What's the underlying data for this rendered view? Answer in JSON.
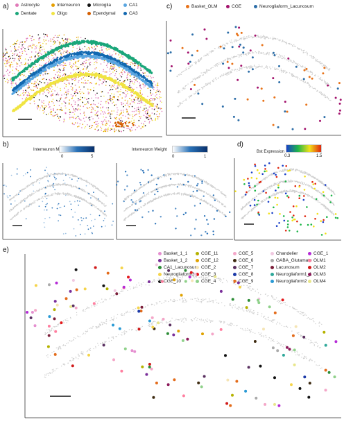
{
  "panels": {
    "a": {
      "label": "a)",
      "legend": [
        {
          "name": "Astrocyte",
          "color": "#e07ab8"
        },
        {
          "name": "Interneuron",
          "color": "#e69f00"
        },
        {
          "name": "Microglia",
          "color": "#111111"
        },
        {
          "name": "CA1",
          "color": "#5aa6e0"
        },
        {
          "name": "Dentate",
          "color": "#1aa67a"
        },
        {
          "name": "Oligo",
          "color": "#f0e442"
        },
        {
          "name": "Ependymal",
          "color": "#d55e00"
        },
        {
          "name": "CA3",
          "color": "#1268b0"
        }
      ]
    },
    "b": {
      "label": "b)",
      "left": {
        "title": "Interneuron Markers",
        "min": "0",
        "max": "5",
        "colors": [
          "#ffffff",
          "#2a72b8",
          "#08306b"
        ]
      },
      "right": {
        "title": "Interneuron Weight",
        "min": "0",
        "max": "1",
        "colors": [
          "#ffffff",
          "#2a72b8",
          "#08306b"
        ]
      }
    },
    "c": {
      "label": "c)",
      "legend": [
        {
          "name": "Basket_OLM",
          "color": "#e8731a"
        },
        {
          "name": "CGE",
          "color": "#a3136d"
        },
        {
          "name": "Neurogliaform_Lacunosum",
          "color": "#2d6ea8"
        }
      ]
    },
    "d": {
      "label": "d)",
      "title": "Bst Expression",
      "min": "0.3",
      "max": "1.5",
      "colors": [
        "#1a40c8",
        "#1fb64a",
        "#f2e01a",
        "#e0260e"
      ]
    },
    "e": {
      "label": "e)",
      "legend": [
        {
          "name": "Basket_1_1",
          "color": "#e58fd0"
        },
        {
          "name": "CGE_11",
          "color": "#b5b200"
        },
        {
          "name": "CGE_5",
          "color": "#f4a6c8"
        },
        {
          "name": "Chandelier",
          "color": "#f0c8e0"
        },
        {
          "name": "CGE_1",
          "color": "#b52bd6"
        },
        {
          "name": "Basket_1_2",
          "color": "#7a2f9a"
        },
        {
          "name": "CGE_12",
          "color": "#e0a200"
        },
        {
          "name": "CGE_6",
          "color": "#3d2a10"
        },
        {
          "name": "GABA_Glutamate",
          "color": "#aaaaaa"
        },
        {
          "name": "OLM1",
          "color": "#ff7fa0"
        },
        {
          "name": "CA1_Lacunosum",
          "color": "#2c8c36"
        },
        {
          "name": "CGE_2",
          "color": "#f5e5b5"
        },
        {
          "name": "CGE_7",
          "color": "#5a3060"
        },
        {
          "name": "Lacunosum",
          "color": "#7b1f3a"
        },
        {
          "name": "OLM2",
          "color": "#d01a1a"
        },
        {
          "name": "Neurogliaform3",
          "color": "#f5d44a"
        },
        {
          "name": "CGE_3",
          "color": "#e31a1c"
        },
        {
          "name": "CGE_8",
          "color": "#1c3aa8"
        },
        {
          "name": "Neurogliaform1_1",
          "color": "#2fa89a"
        },
        {
          "name": "OLM3",
          "color": "#8c1a5a"
        },
        {
          "name": "CGE_10",
          "color": "#111111"
        },
        {
          "name": "CGE_4",
          "color": "#8fd18a"
        },
        {
          "name": "CGE_9",
          "color": "#e36b1a"
        },
        {
          "name": "Neurogliaform2",
          "color": "#2a9ad5"
        },
        {
          "name": "OLM4",
          "color": "#e8e68a"
        }
      ]
    }
  },
  "chart_data": [
    {
      "panel": "a",
      "type": "scatter",
      "title": "",
      "xlabel": "",
      "ylabel": "",
      "grid": false,
      "legend_position": "top",
      "series": [
        {
          "name": "Astrocyte",
          "color": "#e07ab8"
        },
        {
          "name": "Interneuron",
          "color": "#e69f00"
        },
        {
          "name": "Microglia",
          "color": "#111111"
        },
        {
          "name": "CA1",
          "color": "#5aa6e0"
        },
        {
          "name": "Dentate",
          "color": "#1aa67a"
        },
        {
          "name": "Oligo",
          "color": "#f0e442"
        },
        {
          "name": "Ependymal",
          "color": "#d55e00"
        },
        {
          "name": "CA3",
          "color": "#1268b0"
        }
      ]
    },
    {
      "panel": "b-left",
      "type": "scatter",
      "colorbar": {
        "label": "Interneuron Markers",
        "range": [
          0,
          5
        ]
      }
    },
    {
      "panel": "b-right",
      "type": "scatter",
      "colorbar": {
        "label": "Interneuron Weight",
        "range": [
          0,
          1
        ]
      }
    },
    {
      "panel": "c",
      "type": "scatter",
      "legend_position": "top",
      "series": [
        {
          "name": "Basket_OLM"
        },
        {
          "name": "CGE"
        },
        {
          "name": "Neurogliaform_Lacunosum"
        }
      ]
    },
    {
      "panel": "d",
      "type": "scatter",
      "colorbar": {
        "label": "Bst Expression",
        "range": [
          0.3,
          1.5
        ]
      }
    },
    {
      "panel": "e",
      "type": "scatter",
      "legend_position": "top-right",
      "series_count": 25
    }
  ]
}
